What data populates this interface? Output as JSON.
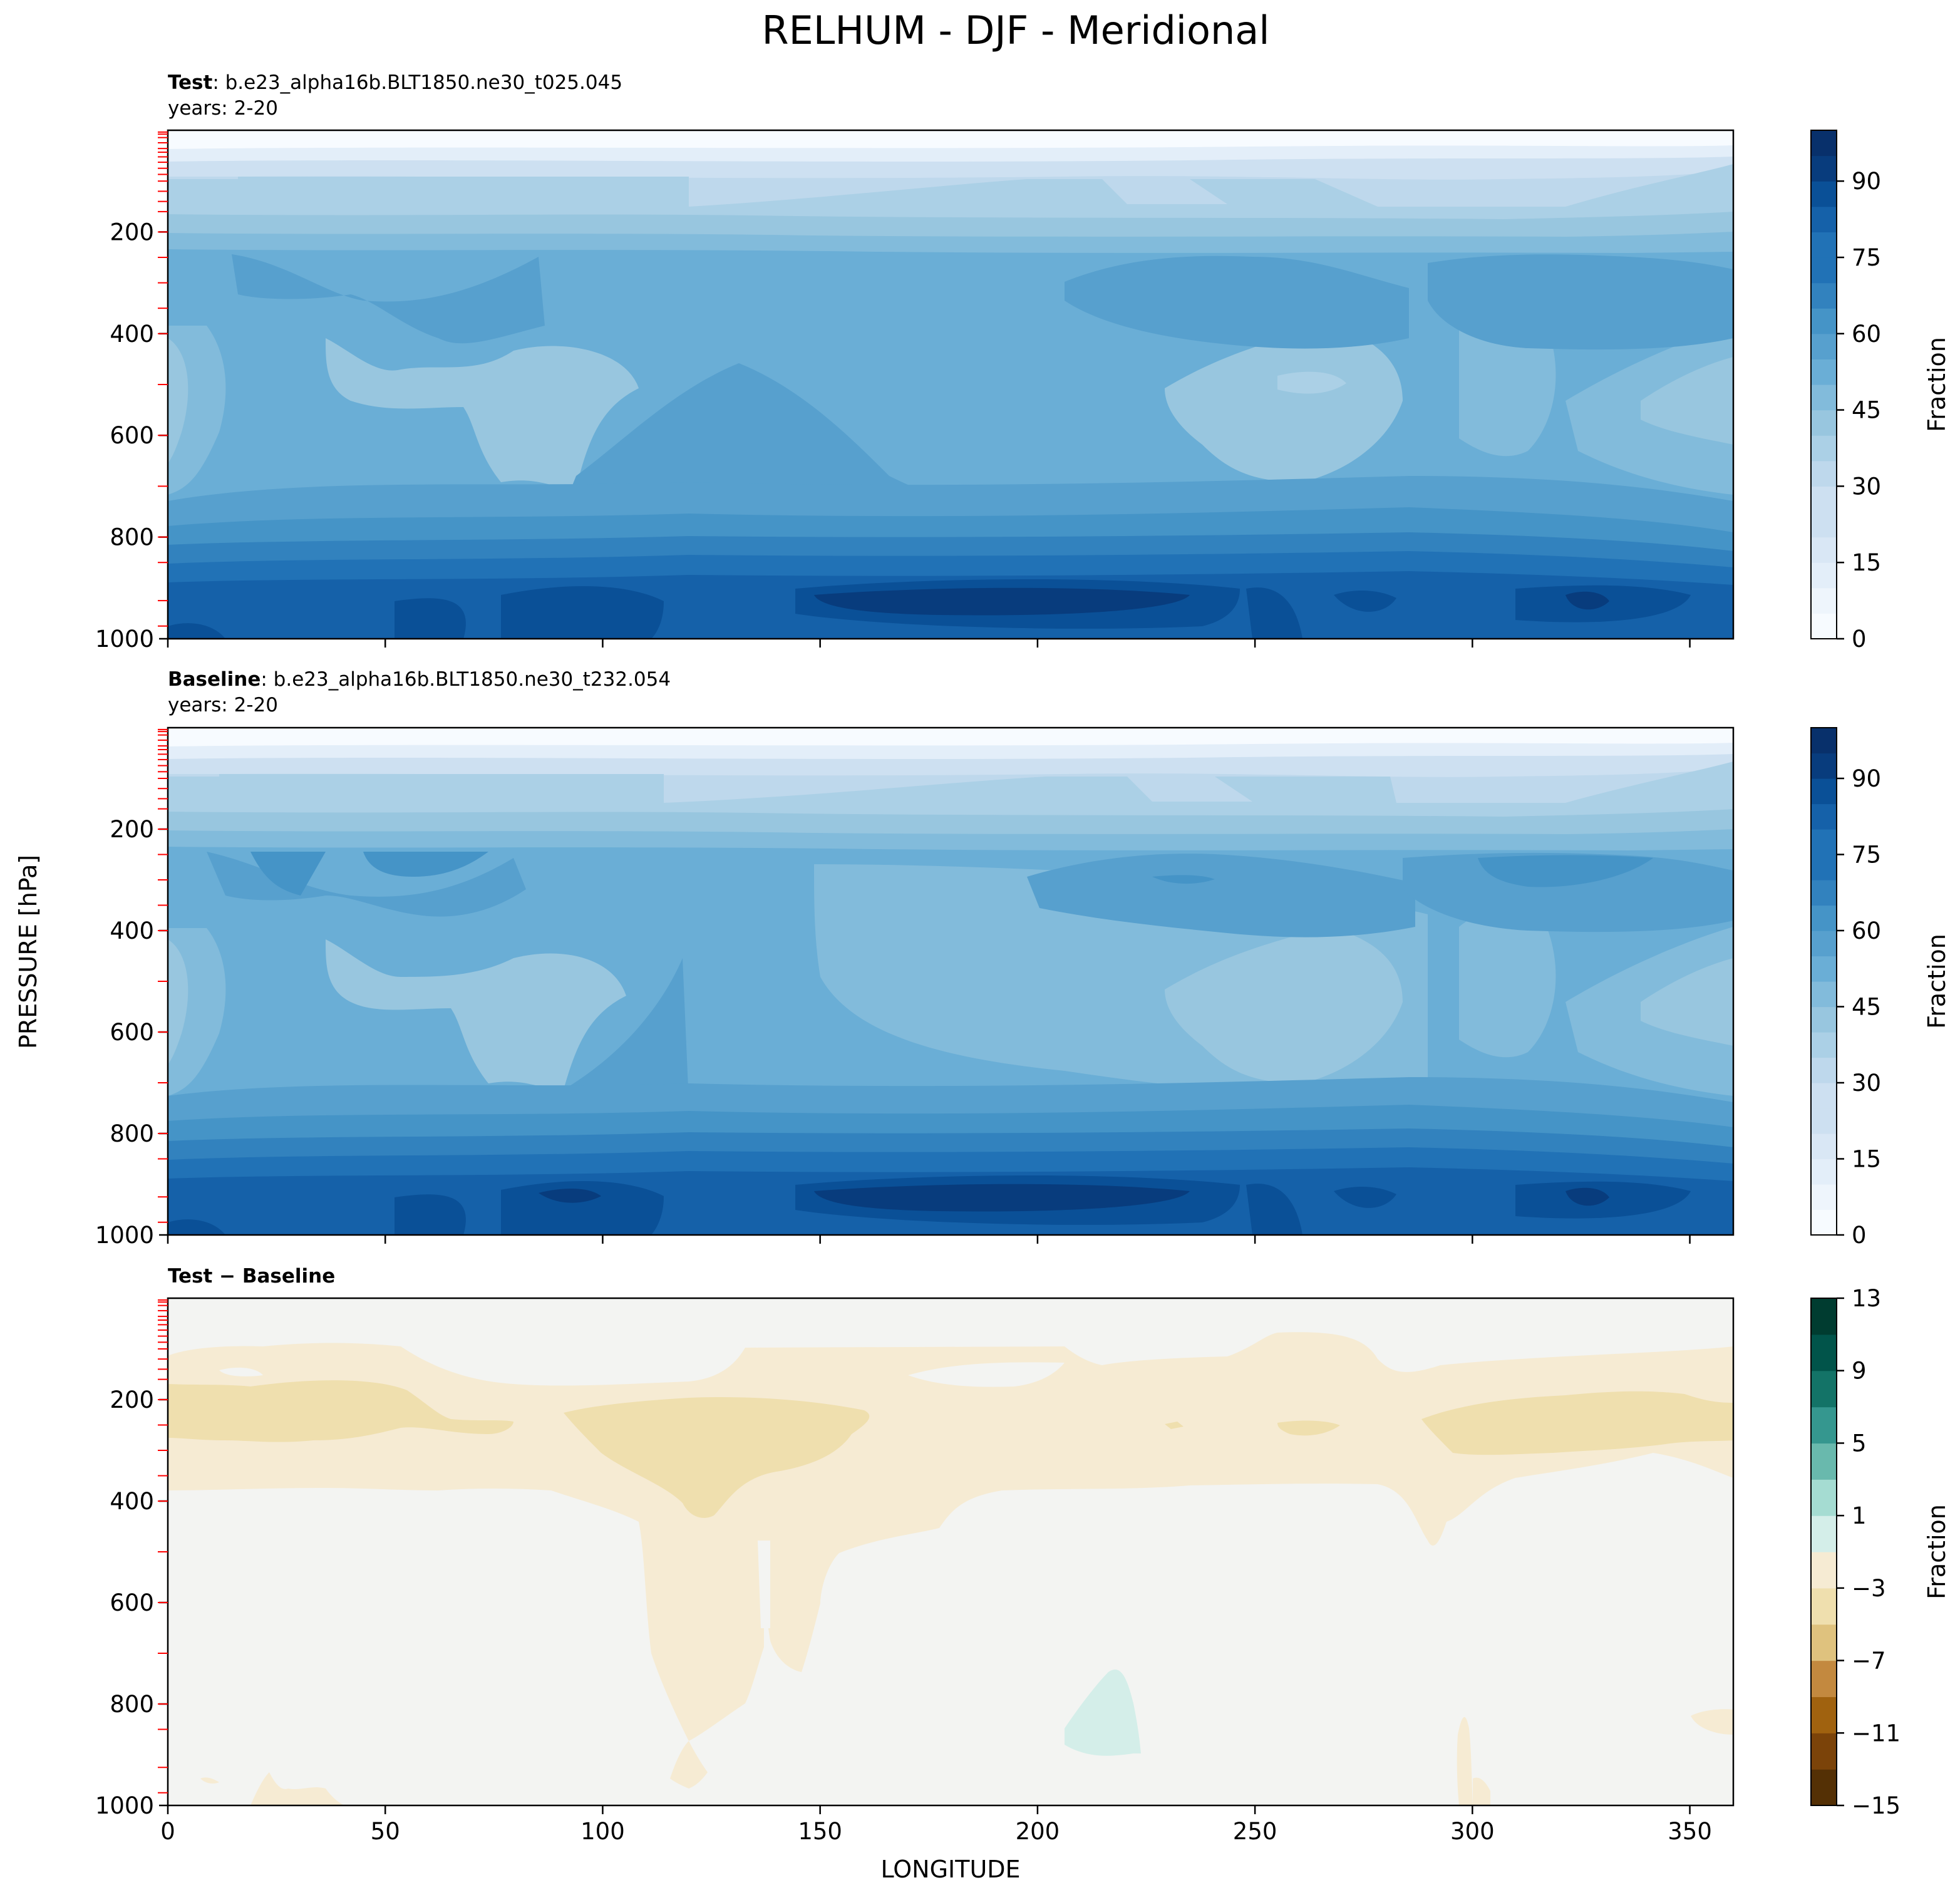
{
  "chart_data": {
    "suptitle": "RELHUM - DJF - Meridional",
    "shared_ylabel": "PRESSURE [hPa]",
    "xlabel": "LONGITUDE",
    "colors": {
      "blues": [
        "#f7fbff",
        "#eef5fc",
        "#e3eef9",
        "#d9e7f5",
        "#cde0f1",
        "#bed8ec",
        "#abd0e6",
        "#98c6df",
        "#82bbdb",
        "#6aaed6",
        "#57a0ce",
        "#4594c7",
        "#3282be",
        "#2172b6",
        "#1561a9",
        "#0a5097",
        "#083c7d",
        "#08306b"
      ],
      "brbg": [
        "#543005",
        "#7b4309",
        "#a0620f",
        "#c3893f",
        "#dfc27e",
        "#efdfae",
        "#f6ebd3",
        "#f3f4f2",
        "#d4eee9",
        "#a5dcd2",
        "#69b9ad",
        "#35978f",
        "#137367",
        "#01544a",
        "#003c30"
      ],
      "tick_red": "#ff0000"
    },
    "panels": [
      {
        "id": "test",
        "title_bold": "Test",
        "title_rest": ": b.e23_alpha16b.BLT1850.ne30_t025.045",
        "subtitle": "years: 2-20",
        "type": "contourf",
        "colormap": "Blues",
        "levels": [
          0,
          5,
          10,
          15,
          20,
          25,
          30,
          35,
          40,
          45,
          50,
          55,
          60,
          65,
          70,
          75,
          80,
          85,
          90,
          95,
          100
        ],
        "colorbar_ticks": [
          "0",
          "15",
          "30",
          "45",
          "60",
          "75",
          "90"
        ],
        "colorbar_label": "Fraction",
        "x_range": [
          0,
          360
        ],
        "y_range": [
          1000,
          0
        ],
        "y_ticks": [
          "200",
          "400",
          "600",
          "800",
          "1000"
        ],
        "x_ticks": [
          0,
          50,
          100,
          150,
          200,
          250,
          300,
          350
        ],
        "x_ticklabels_visible": false
      },
      {
        "id": "baseline",
        "title_bold": "Baseline",
        "title_rest": ": b.e23_alpha16b.BLT1850.ne30_t232.054",
        "subtitle": "years: 2-20",
        "type": "contourf",
        "colormap": "Blues",
        "levels": [
          0,
          5,
          10,
          15,
          20,
          25,
          30,
          35,
          40,
          45,
          50,
          55,
          60,
          65,
          70,
          75,
          80,
          85,
          90,
          95,
          100
        ],
        "colorbar_ticks": [
          "0",
          "15",
          "30",
          "45",
          "60",
          "75",
          "90"
        ],
        "colorbar_label": "Fraction",
        "x_range": [
          0,
          360
        ],
        "y_range": [
          1000,
          0
        ],
        "y_ticks": [
          "200",
          "400",
          "600",
          "800",
          "1000"
        ],
        "x_ticks": [
          0,
          50,
          100,
          150,
          200,
          250,
          300,
          350
        ],
        "x_ticklabels_visible": false
      },
      {
        "id": "diff",
        "title_bold": "Test − Baseline",
        "title_rest": "",
        "subtitle": "",
        "type": "contourf",
        "colormap": "BrBG",
        "levels": [
          -15,
          -13,
          -11,
          -9,
          -7,
          -5,
          -3,
          -1,
          1,
          3,
          5,
          7,
          9,
          11,
          13
        ],
        "colorbar_ticks": [
          "13",
          "9",
          "5",
          "1",
          "−3",
          "−7",
          "−11",
          "−15"
        ],
        "colorbar_label": "Fraction",
        "x_range": [
          0,
          360
        ],
        "y_range": [
          1000,
          0
        ],
        "y_ticks": [
          "200",
          "400",
          "600",
          "800",
          "1000"
        ],
        "x_ticks": [
          0,
          50,
          100,
          150,
          200,
          250,
          300,
          350
        ],
        "x_ticklabels": [
          "0",
          "50",
          "100",
          "150",
          "200",
          "250",
          "300",
          "350"
        ],
        "x_ticklabels_visible": true
      }
    ],
    "model_levels_hpa": [
      3.6,
      7.6,
      14.4,
      24.6,
      35.9,
      43.2,
      52.3,
      62.9,
      74.8,
      86.8,
      100,
      120,
      140,
      160,
      200,
      250,
      300,
      350,
      400,
      500,
      600,
      700,
      800,
      850,
      925,
      975
    ]
  }
}
